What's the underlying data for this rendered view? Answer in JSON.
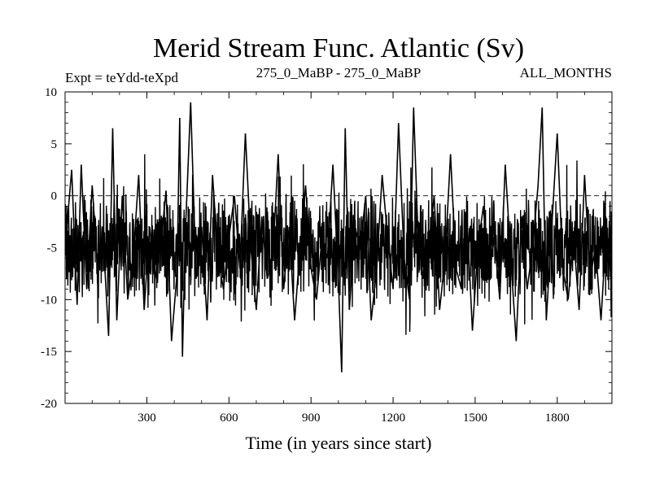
{
  "chart_data": {
    "type": "line",
    "title": "Merid Stream Func. Atlantic (Sv)",
    "subtitle_left": "Expt = teYdd-teXpd",
    "subtitle_center": "275_0_MaBP - 275_0_MaBP",
    "subtitle_right": "ALL_MONTHS",
    "xlabel": "Time (in years since start)",
    "ylabel": "",
    "xlim": [
      1,
      2000
    ],
    "ylim": [
      -20,
      10
    ],
    "xticks": [
      300,
      600,
      900,
      1200,
      1500,
      1800
    ],
    "yticks": [
      10,
      5,
      0,
      -5,
      -10,
      -15,
      -20
    ],
    "reference_line": {
      "y": 0,
      "style": "dashed"
    },
    "series": [
      {
        "color": "#000000",
        "sampling_note": "approximate sampled envelope of annual values",
        "x": [
          1,
          25,
          45,
          60,
          80,
          100,
          120,
          140,
          160,
          175,
          190,
          210,
          230,
          250,
          270,
          290,
          310,
          330,
          350,
          370,
          390,
          410,
          420,
          430,
          440,
          460,
          480,
          500,
          520,
          540,
          560,
          580,
          600,
          620,
          640,
          660,
          680,
          700,
          720,
          740,
          760,
          780,
          800,
          820,
          840,
          860,
          880,
          900,
          920,
          940,
          960,
          980,
          1000,
          1012,
          1025,
          1040,
          1060,
          1080,
          1100,
          1120,
          1140,
          1160,
          1180,
          1200,
          1220,
          1240,
          1260,
          1275,
          1290,
          1310,
          1330,
          1350,
          1370,
          1390,
          1410,
          1430,
          1450,
          1470,
          1490,
          1510,
          1530,
          1550,
          1570,
          1590,
          1610,
          1630,
          1650,
          1670,
          1690,
          1710,
          1730,
          1745,
          1760,
          1780,
          1800,
          1820,
          1840,
          1860,
          1880,
          1900,
          1920,
          1940,
          1960,
          1980,
          2000
        ],
        "y": [
          -5,
          2.5,
          -10.5,
          3,
          -9,
          1,
          -7,
          -4,
          -13.5,
          6.5,
          -12,
          0,
          -10,
          -6,
          2,
          -11,
          -3,
          -8,
          -5,
          0.5,
          -14,
          -7.5,
          7.5,
          -15.5,
          -4,
          9,
          -8,
          -3,
          -12,
          2,
          -6,
          -9,
          -4,
          0,
          -7,
          6,
          -5,
          -11,
          -2,
          -8,
          -6,
          4,
          -9,
          -3,
          -12,
          -5,
          1,
          -7,
          -10,
          -4,
          -6,
          3,
          -8,
          -17,
          6.5,
          -11,
          -3,
          -5,
          0,
          -12,
          -7,
          2,
          -4,
          -9,
          7,
          -6,
          -10,
          8.5,
          -3,
          -8,
          -5,
          0,
          -11,
          -6,
          4,
          -7,
          -9,
          -2,
          -13,
          -5,
          -1,
          -8,
          -4,
          -10,
          3,
          -6,
          -14,
          -2,
          -9,
          -5,
          1,
          8.5,
          -12,
          -3,
          6,
          -7,
          -10,
          -4,
          -11,
          2,
          -8,
          -5,
          -12,
          -3,
          -9
        ]
      }
    ]
  }
}
